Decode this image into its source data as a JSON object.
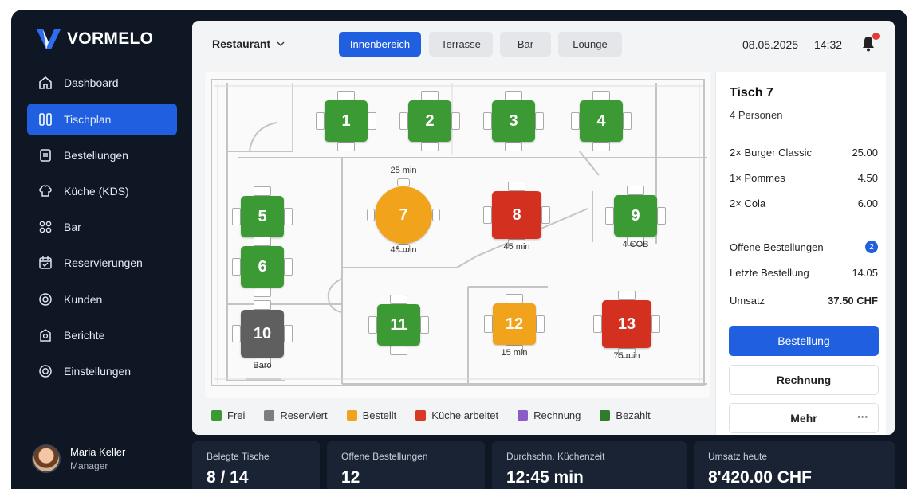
{
  "brand": {
    "name": "VORMELO",
    "accent": "#1f5fe0"
  },
  "sidebar": {
    "items": [
      {
        "label": "Dashboard",
        "icon": "home-icon",
        "active": false
      },
      {
        "label": "Tischplan",
        "icon": "table-plan-icon",
        "active": true
      },
      {
        "label": "Bestellungen",
        "icon": "orders-icon",
        "active": false
      },
      {
        "label": "Küche (KDS)",
        "icon": "kitchen-icon",
        "active": false
      },
      {
        "label": "Bar",
        "icon": "bar-icon",
        "active": false
      },
      {
        "label": "Reservierungen",
        "icon": "calendar-icon",
        "active": false
      },
      {
        "label": "Kunden",
        "icon": "customers-icon",
        "active": false
      },
      {
        "label": "Berichte",
        "icon": "reports-icon",
        "active": false
      },
      {
        "label": "Einstellungen",
        "icon": "settings-icon",
        "active": false
      }
    ]
  },
  "user": {
    "name": "Maria Keller",
    "role": "Manager"
  },
  "header": {
    "venue": "Restaurant",
    "tabs": [
      {
        "label": "Innenbereich",
        "active": true
      },
      {
        "label": "Terrasse",
        "active": false
      },
      {
        "label": "Bar",
        "active": false
      },
      {
        "label": "Lounge",
        "active": false
      }
    ],
    "date": "08.05.2025",
    "time": "14:32"
  },
  "floor": {
    "tables": [
      {
        "number": "1",
        "status": "frei"
      },
      {
        "number": "2",
        "status": "frei"
      },
      {
        "number": "3",
        "status": "frei"
      },
      {
        "number": "4",
        "status": "frei"
      },
      {
        "number": "5",
        "status": "frei"
      },
      {
        "number": "6",
        "status": "frei"
      },
      {
        "number": "7",
        "status": "bestellt",
        "label_top": "25 min",
        "label_bottom": "45 min"
      },
      {
        "number": "8",
        "status": "kueche",
        "label_bottom": "45 min"
      },
      {
        "number": "9",
        "status": "frei",
        "label_bottom": "4 ЄОВ"
      },
      {
        "number": "10",
        "status": "reserviert",
        "label_bottom": "Baro"
      },
      {
        "number": "11",
        "status": "frei"
      },
      {
        "number": "12",
        "status": "bestellt",
        "label_bottom": "15 min"
      },
      {
        "number": "13",
        "status": "kueche",
        "label_bottom": "75 min"
      }
    ],
    "legend": [
      {
        "label": "Frei",
        "color": "#3c9a34"
      },
      {
        "label": "Reserviert",
        "color": "#7d7d7d"
      },
      {
        "label": "Bestellt",
        "color": "#f0a31b"
      },
      {
        "label": "Küche arbeitet",
        "color": "#d83a26"
      },
      {
        "label": "Rechnung",
        "color": "#8a5cc8"
      },
      {
        "label": "Bezahlt",
        "color": "#2f7d2a"
      }
    ],
    "status_colors": {
      "frei": "#3c9a34",
      "reserviert": "#5f5f5f",
      "bestellt": "#f0a31b",
      "kueche": "#d3301f"
    }
  },
  "detail": {
    "title": "Tisch 7",
    "guests": "4 Personen",
    "items": [
      {
        "name": "2× Burger Classic",
        "price": "25.00"
      },
      {
        "name": "1× Pommes",
        "price": "4.50"
      },
      {
        "name": "2× Cola",
        "price": "6.00"
      }
    ],
    "open_orders_label": "Offene Bestellungen",
    "open_orders_count": "2",
    "last_order_label": "Letzte Bestellung",
    "last_order_time": "14.05",
    "revenue_label": "Umsatz",
    "revenue_value": "37.50 CHF",
    "btn_order": "Bestellung",
    "btn_bill": "Rechnung",
    "btn_more": "Mehr",
    "more_dots": "···"
  },
  "stats": [
    {
      "label": "Belegte Tische",
      "value": "8 / 14"
    },
    {
      "label": "Offene Bestellungen",
      "value": "12"
    },
    {
      "label": "Durchschn. Küchenzeit",
      "value": "12:45 min"
    },
    {
      "label": "Umsatz heute",
      "value": "8'420.00 CHF"
    }
  ]
}
